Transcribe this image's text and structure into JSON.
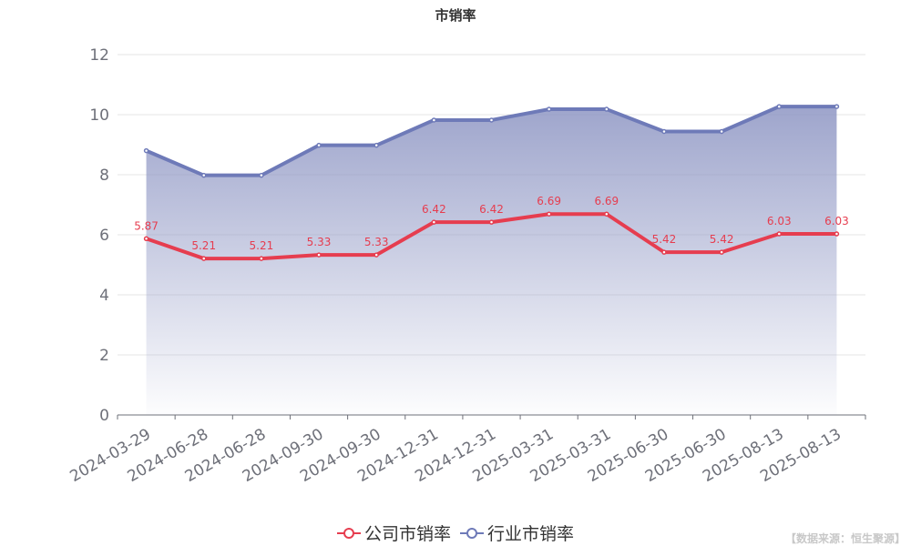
{
  "chart_data": {
    "type": "line",
    "title": "市销率",
    "categories": [
      "2024-03-29",
      "2024-06-28",
      "2024-06-28",
      "2024-09-30",
      "2024-09-30",
      "2024-12-31",
      "2024-12-31",
      "2025-03-31",
      "2025-03-31",
      "2025-06-30",
      "2025-06-30",
      "2025-08-13",
      "2025-08-13"
    ],
    "series": [
      {
        "name": "公司市销率",
        "color": "#e63d4f",
        "values": [
          5.87,
          5.21,
          5.21,
          5.33,
          5.33,
          6.42,
          6.42,
          6.69,
          6.69,
          5.42,
          5.42,
          6.03,
          6.03
        ],
        "labels_shown": true
      },
      {
        "name": "行业市销率",
        "color": "#6e7ab8",
        "values": [
          8.8,
          7.98,
          7.98,
          8.98,
          8.98,
          9.82,
          9.82,
          10.18,
          10.18,
          9.44,
          9.44,
          10.27,
          10.27
        ],
        "area": true,
        "labels_shown": false
      }
    ],
    "yticks": [
      0,
      2,
      4,
      6,
      8,
      10,
      12
    ],
    "ylim": [
      0,
      12
    ],
    "grid": true,
    "legend": "bottom-center"
  },
  "source": "【数据来源：恒生聚源】"
}
